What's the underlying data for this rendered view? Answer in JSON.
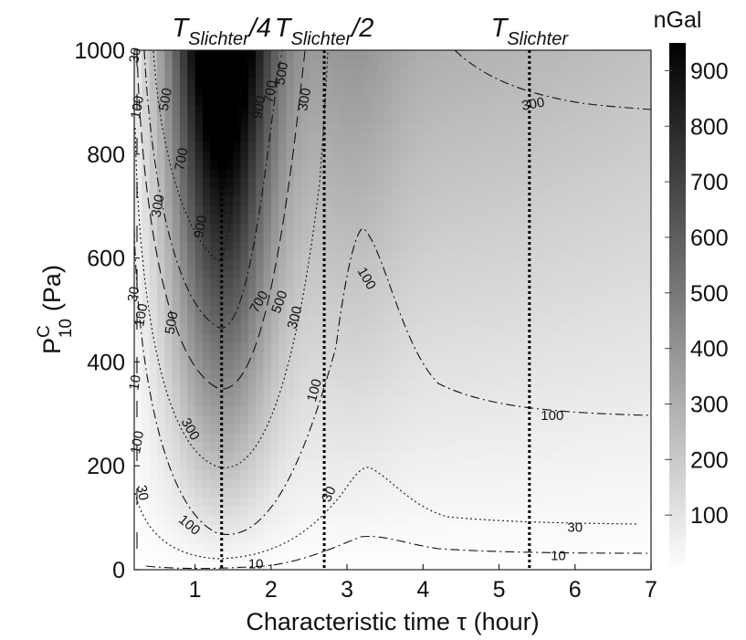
{
  "chart_data": {
    "type": "heatmap",
    "xlabel": "Characteristic time τ (hour)",
    "ylabel_main": "P",
    "ylabel_sup": "C",
    "ylabel_sub": "10",
    "ylabel_unit": "(Pa)",
    "xlim": [
      0.2,
      7
    ],
    "ylim": [
      0,
      1000
    ],
    "x_ticks": [
      1,
      2,
      3,
      4,
      5,
      6,
      7
    ],
    "x_tick_labels": [
      "1",
      "2",
      "3",
      "4",
      "5",
      "6",
      "7"
    ],
    "y_ticks": [
      0,
      200,
      400,
      600,
      800,
      1000
    ],
    "y_tick_labels": [
      "0",
      "200",
      "400",
      "600",
      "800",
      "1000"
    ],
    "colorbar": {
      "label": "nGal",
      "range": [
        0,
        950
      ],
      "ticks": [
        100,
        200,
        300,
        400,
        500,
        600,
        700,
        800,
        900
      ],
      "tick_labels": [
        "100",
        "200",
        "300",
        "400",
        "500",
        "600",
        "700",
        "800",
        "900"
      ],
      "colormap": "white-to-black"
    },
    "vertical_lines": [
      {
        "x": 1.35,
        "label_main": "T",
        "label_sub": "Slichter",
        "label_suffix": "/4"
      },
      {
        "x": 2.7,
        "label_main": "T",
        "label_sub": "Slichter",
        "label_suffix": "/2"
      },
      {
        "x": 5.4,
        "label_main": "T",
        "label_sub": "Slichter",
        "label_suffix": ""
      }
    ],
    "contour_levels": [
      10,
      30,
      100,
      300,
      500,
      700,
      900
    ],
    "contour_labels": [
      {
        "text": "10",
        "x": 0.22,
        "y": 360,
        "rot": -80
      },
      {
        "text": "30",
        "x": 0.22,
        "y": 990,
        "rot": -80
      },
      {
        "text": "100",
        "x": 0.25,
        "y": 890,
        "rot": -80
      },
      {
        "text": "500",
        "x": 0.62,
        "y": 905,
        "rot": -80
      },
      {
        "text": "700",
        "x": 0.83,
        "y": 790,
        "rot": -80
      },
      {
        "text": "300",
        "x": 0.52,
        "y": 700,
        "rot": -80
      },
      {
        "text": "900",
        "x": 1.08,
        "y": 660,
        "rot": -80
      },
      {
        "text": "900",
        "x": 1.85,
        "y": 890,
        "rot": -80
      },
      {
        "text": "700",
        "x": 2.0,
        "y": 920,
        "rot": -80
      },
      {
        "text": "500",
        "x": 2.15,
        "y": 955,
        "rot": -80
      },
      {
        "text": "300",
        "x": 2.45,
        "y": 905,
        "rot": -80
      },
      {
        "text": "30",
        "x": 0.2,
        "y": 530,
        "rot": -80
      },
      {
        "text": "100",
        "x": 0.3,
        "y": 490,
        "rot": -80
      },
      {
        "text": "500",
        "x": 0.7,
        "y": 475,
        "rot": -80
      },
      {
        "text": "700",
        "x": 1.85,
        "y": 515,
        "rot": -60
      },
      {
        "text": "500",
        "x": 2.12,
        "y": 515,
        "rot": -70
      },
      {
        "text": "300",
        "x": 2.32,
        "y": 485,
        "rot": -75
      },
      {
        "text": "100",
        "x": 3.25,
        "y": 560,
        "rot": 60
      },
      {
        "text": "100",
        "x": 2.58,
        "y": 345,
        "rot": -75
      },
      {
        "text": "300",
        "x": 0.93,
        "y": 270,
        "rot": 60
      },
      {
        "text": "100",
        "x": 0.25,
        "y": 245,
        "rot": -80
      },
      {
        "text": "30",
        "x": 0.3,
        "y": 148,
        "rot": 80
      },
      {
        "text": "100",
        "x": 0.92,
        "y": 85,
        "rot": 40
      },
      {
        "text": "30",
        "x": 2.77,
        "y": 145,
        "rot": -65
      },
      {
        "text": "10",
        "x": 1.8,
        "y": 10,
        "rot": 0
      },
      {
        "text": "100",
        "x": 5.7,
        "y": 295,
        "rot": 0
      },
      {
        "text": "30",
        "x": 6.0,
        "y": 80,
        "rot": 0
      },
      {
        "text": "10",
        "x": 5.78,
        "y": 25,
        "rot": 0
      },
      {
        "text": "300",
        "x": 5.45,
        "y": 895,
        "rot": -10
      }
    ]
  }
}
